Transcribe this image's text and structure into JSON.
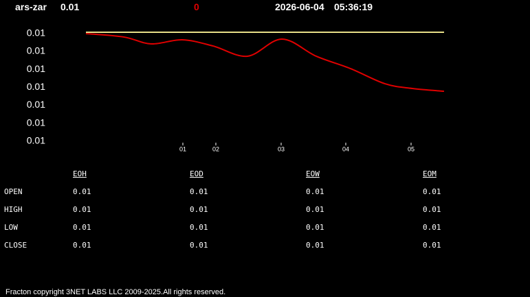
{
  "header": {
    "symbol": "ars-zar",
    "price": "0.01",
    "change": "0",
    "date": "2026-06-04",
    "time": "05:36:19"
  },
  "chart_data": {
    "type": "line",
    "x": [
      0,
      5.5,
      9.5,
      14,
      18.5,
      23.5,
      28.5,
      33.5,
      38.5,
      43.5,
      47.5,
      52.1
    ],
    "series": [
      {
        "color": "#e8e088",
        "values": [
          0.010613,
          0.010613,
          0.010613,
          0.010613,
          0.010613,
          0.010613,
          0.010613,
          0.010613,
          0.010613,
          0.010613,
          0.010613,
          0.010613
        ]
      },
      {
        "color": "#e00000",
        "values": [
          0.010598,
          0.01056,
          0.010483,
          0.010529,
          0.01046,
          0.010346,
          0.010537,
          0.010346,
          0.010208,
          0.01004,
          0.009987,
          0.009956
        ]
      }
    ],
    "xlim": [
      0,
      52.1
    ],
    "xticks": [
      {
        "value": 14.1,
        "label": "01"
      },
      {
        "value": 18.9,
        "label": "02"
      },
      {
        "value": 28.4,
        "label": "03"
      },
      {
        "value": 37.8,
        "label": "04"
      },
      {
        "value": 47.3,
        "label": "05"
      }
    ],
    "ylim": [
      0.0093,
      0.0107
    ],
    "yticks": [
      {
        "value": 0.0106,
        "label": "0.01"
      },
      {
        "value": 0.0104,
        "label": "0.01"
      },
      {
        "value": 0.0102,
        "label": "0.01"
      },
      {
        "value": 0.01,
        "label": "0.01"
      },
      {
        "value": 0.0098,
        "label": "0.01"
      },
      {
        "value": 0.0096,
        "label": "0.01"
      },
      {
        "value": 0.0094,
        "label": "0.01"
      }
    ]
  },
  "table": {
    "columns": [
      "EOH",
      "EOD",
      "EOW",
      "EOM"
    ],
    "rows": [
      [
        "OPEN",
        "0.01",
        "0.01",
        "0.01",
        "0.01"
      ],
      [
        "HIGH",
        "0.01",
        "0.01",
        "0.01",
        "0.01"
      ],
      [
        "LOW",
        "0.01",
        "0.01",
        "0.01",
        "0.01"
      ],
      [
        "CLOSE",
        "0.01",
        "0.01",
        "0.01",
        "0.01"
      ]
    ]
  },
  "footer": "Fracton copyright 3NET LABS LLC 2009-2025.All rights reserved."
}
